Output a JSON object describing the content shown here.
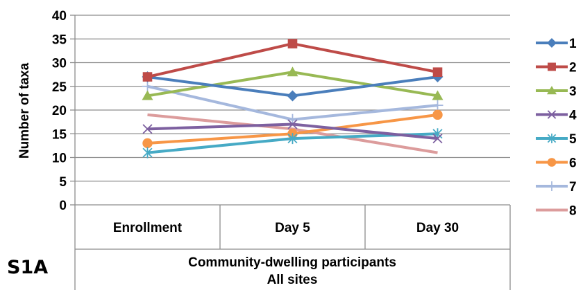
{
  "panel_label": "S1A",
  "chart_data": {
    "type": "line",
    "categories": [
      "Enrollment",
      "Day 5",
      "Day 30"
    ],
    "ylabel": "Number of taxa",
    "xlabel_line1": "Community-dwelling participants",
    "xlabel_line2": "All sites",
    "ylim": [
      0,
      40
    ],
    "yticks": [
      0,
      5,
      10,
      15,
      20,
      25,
      30,
      35,
      40
    ],
    "grid": true,
    "legend_position": "right",
    "series": [
      {
        "name": "1",
        "values": [
          27,
          23,
          27
        ],
        "color": "#4a7ebb",
        "marker": "diamond"
      },
      {
        "name": "2",
        "values": [
          27,
          34,
          28
        ],
        "color": "#be4b48",
        "marker": "square"
      },
      {
        "name": "3",
        "values": [
          23,
          28,
          23
        ],
        "color": "#98b954",
        "marker": "triangle"
      },
      {
        "name": "4",
        "values": [
          16,
          17,
          14
        ],
        "color": "#7d60a0",
        "marker": "x"
      },
      {
        "name": "5",
        "values": [
          11,
          14,
          15
        ],
        "color": "#46aac5",
        "marker": "star"
      },
      {
        "name": "6",
        "values": [
          13,
          15,
          19
        ],
        "color": "#f79646",
        "marker": "circle"
      },
      {
        "name": "7",
        "values": [
          25,
          18,
          21
        ],
        "color": "#a5b8dd",
        "marker": "plus"
      },
      {
        "name": "8",
        "values": [
          19,
          16,
          11
        ],
        "color": "#dc9c9c",
        "marker": "none"
      }
    ]
  }
}
